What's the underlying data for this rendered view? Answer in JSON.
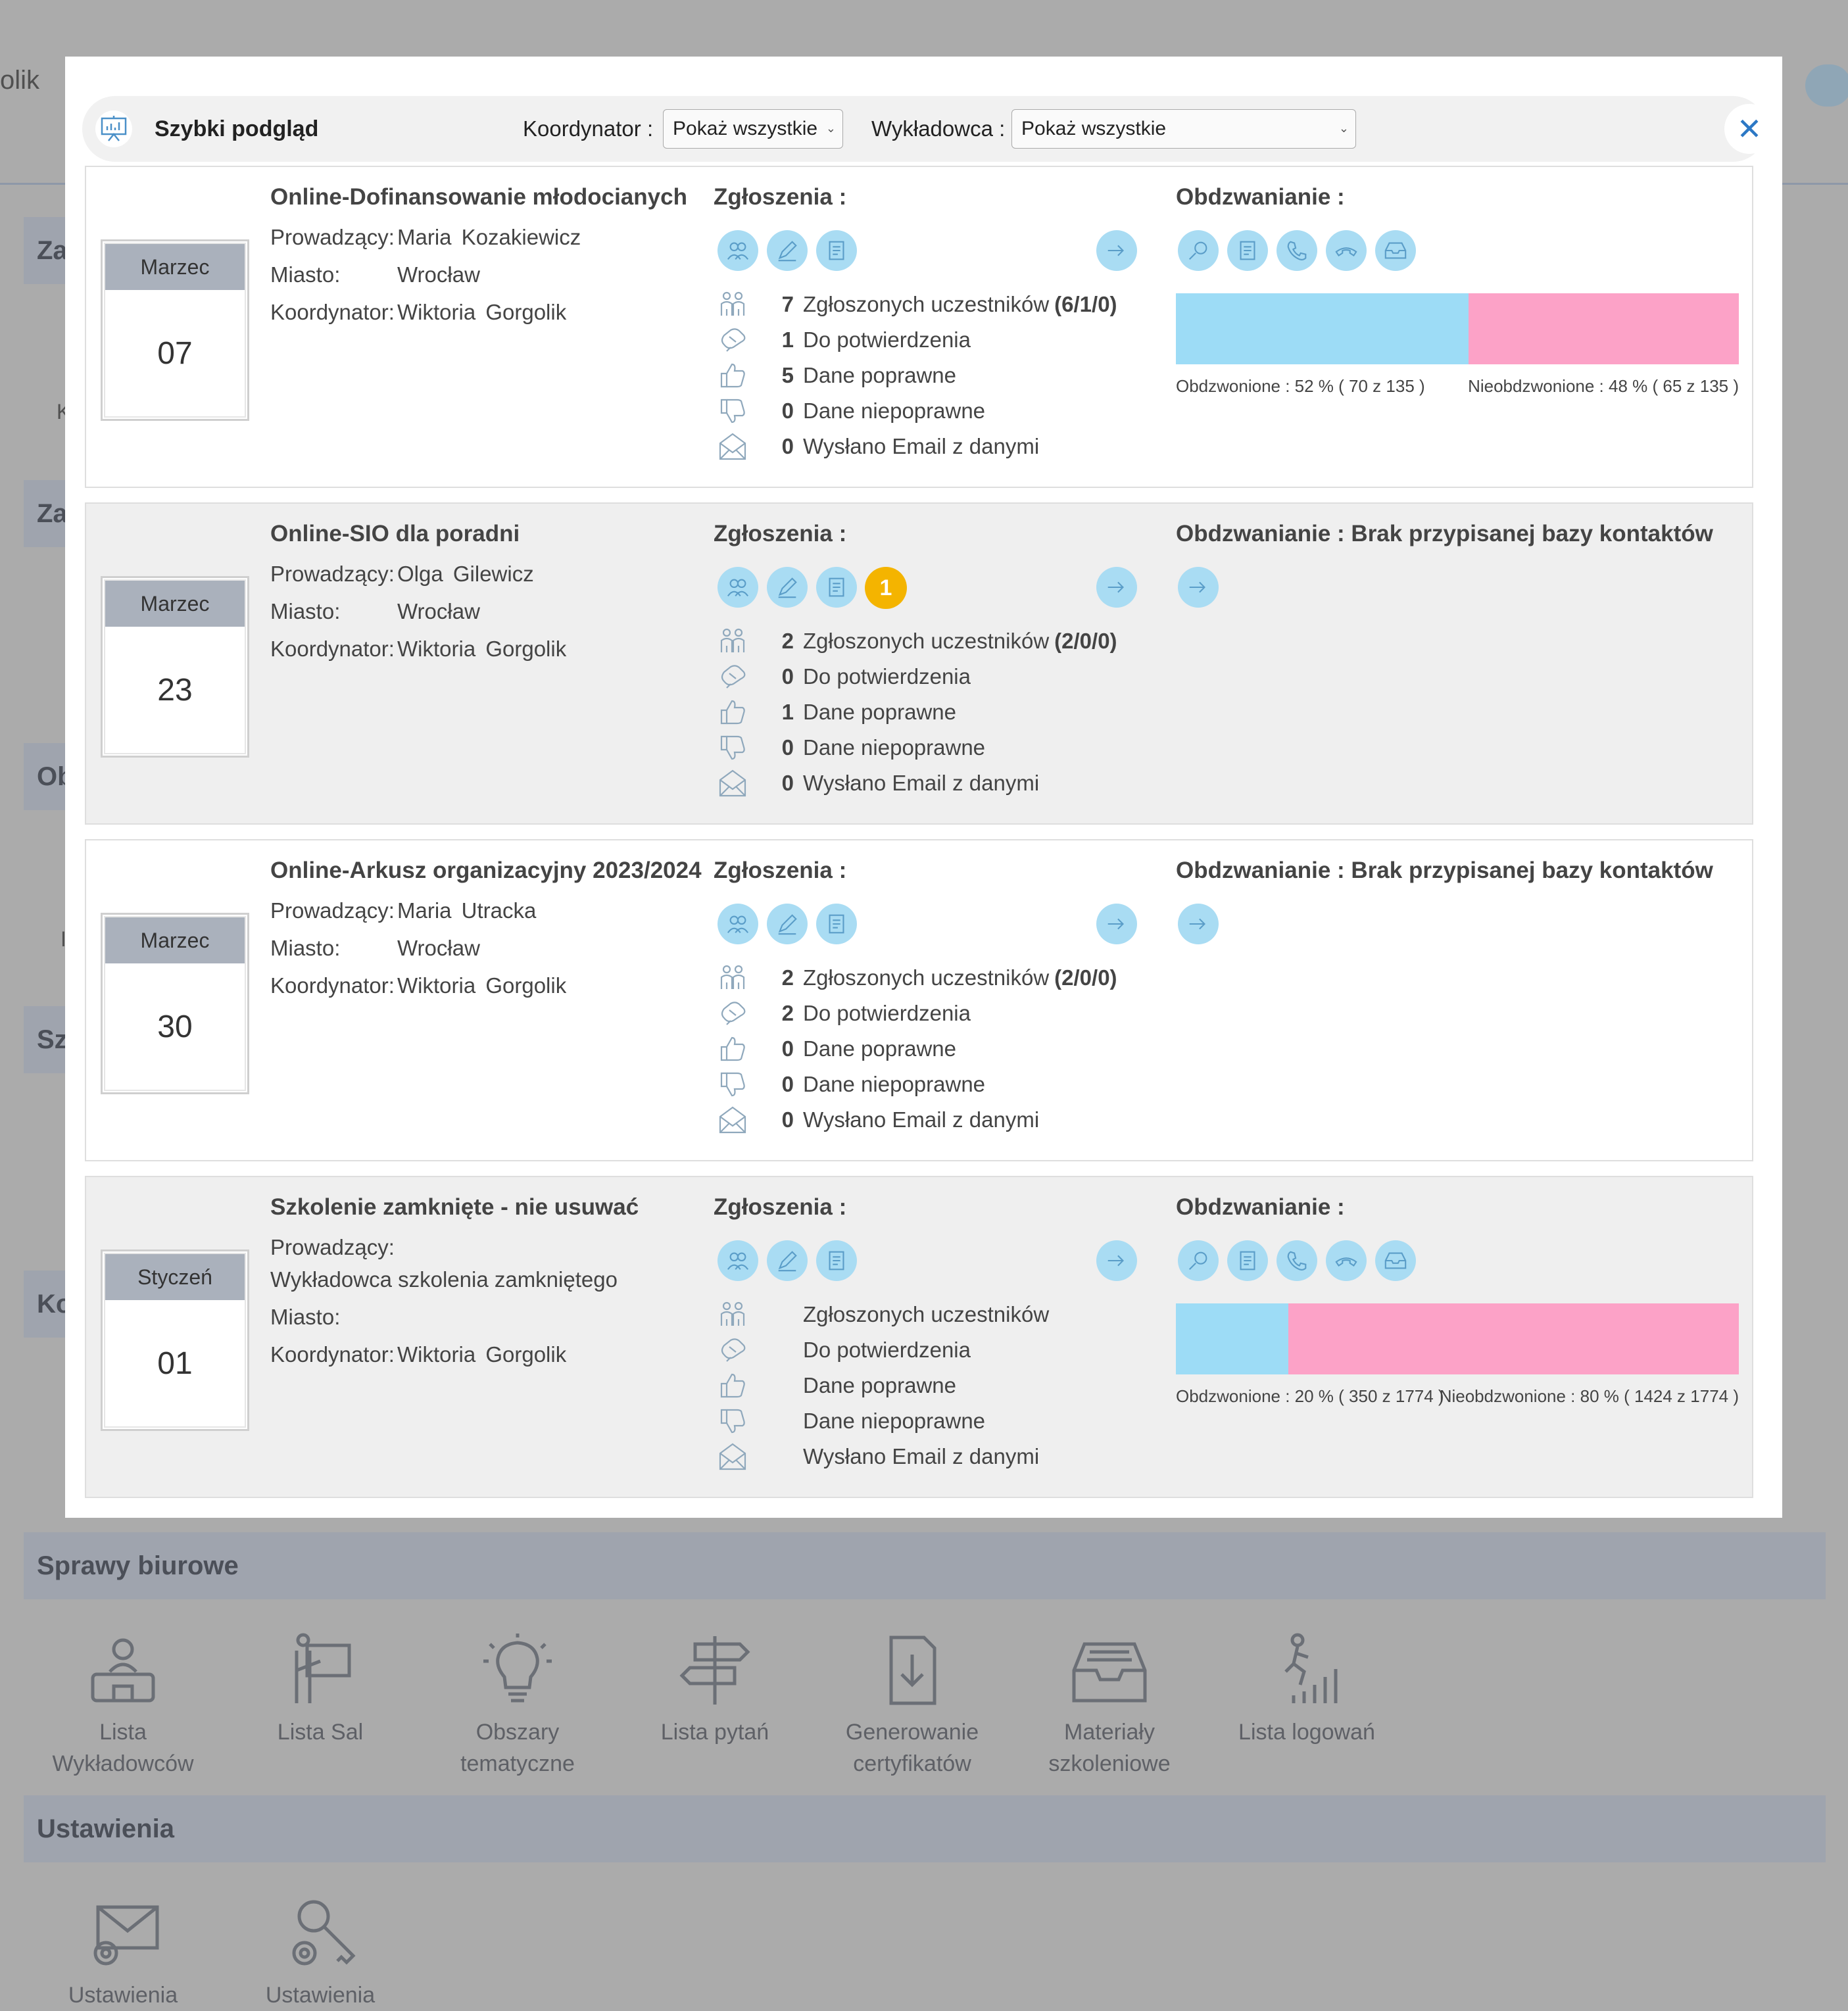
{
  "background": {
    "top_left_fragment": "olik",
    "side_fragments": [
      "Za",
      "K",
      "Za",
      "Ob",
      "I",
      "Sz",
      "Ko"
    ],
    "sections": [
      {
        "label": "Sprawy biurowe"
      },
      {
        "label": "Ustawienia"
      }
    ],
    "office_tiles": [
      {
        "label": "Lista\nWykładowców",
        "icon": "lecturer-icon"
      },
      {
        "label": "Lista Sal",
        "icon": "room-sign-icon"
      },
      {
        "label": "Obszary\ntematyczne",
        "icon": "lightbulb-icon"
      },
      {
        "label": "Lista pytań",
        "icon": "signpost-icon"
      },
      {
        "label": "Generowanie\ncertyfikatów",
        "icon": "download-document-icon"
      },
      {
        "label": "Materiały\nszkoleniowe",
        "icon": "inbox-tray-icon"
      },
      {
        "label": "Lista logowań",
        "icon": "login-stats-icon"
      }
    ],
    "settings_tiles": [
      {
        "label": "Ustawienia",
        "icon": "email-settings-icon"
      },
      {
        "label": "Ustawienia",
        "icon": "key-settings-icon"
      }
    ]
  },
  "modal": {
    "title": "Szybki podgląd",
    "coordinator_label": "Koordynator :",
    "coordinator_value": "Pokaż wszystkie",
    "lecturer_label": "Wykładowca :",
    "lecturer_value": "Pokaż wszystkie",
    "close_icon": "close-icon"
  },
  "labels": {
    "lecturer": "Prowadzący:",
    "city": "Miasto:",
    "coordinator": "Koordynator:",
    "applications": "Zgłoszenia :",
    "registered": "Zgłoszonych uczestników",
    "to_confirm": "Do potwierdzenia",
    "data_ok": "Dane poprawne",
    "data_bad": "Dane niepoprawne",
    "email_sent": "Wysłano Email z danymi"
  },
  "colors": {
    "called": "#9ddcf6",
    "not_called": "#fca2c7",
    "icon_button": "#a9dcf3",
    "badge": "#f4b400"
  },
  "cards": [
    {
      "month": "Marzec",
      "day": "07",
      "title": "Online-Dofinansowanie młodocianych",
      "lecturer": "Maria  Kozakiewicz",
      "city": "Wrocław",
      "coordinator": "Wiktoria Gorgolik",
      "stats": {
        "registered": "7",
        "registered_detail": "(6/1/0)",
        "to_confirm": "1",
        "data_ok": "5",
        "data_bad": "0",
        "email_sent": "0"
      },
      "calls_title": "Obdzwanianie :",
      "called_fraction": 0.52,
      "called_label": "Obdzwonione : 52 % ( 70 z 135 )",
      "not_called_label": "Nieobdzwonione : 48 % ( 65 z 135 )"
    },
    {
      "month": "Marzec",
      "day": "23",
      "title": "Online-SIO dla poradni",
      "lecturer": "Olga  Gilewicz",
      "city": "Wrocław",
      "coordinator": "Wiktoria Gorgolik",
      "badge": "1",
      "stats": {
        "registered": "2",
        "registered_detail": "(2/0/0)",
        "to_confirm": "0",
        "data_ok": "1",
        "data_bad": "0",
        "email_sent": "0"
      },
      "calls_title": "Obdzwanianie : Brak przypisanej bazy kontaktów"
    },
    {
      "month": "Marzec",
      "day": "30",
      "title": "Online-Arkusz organizacyjny 2023/2024",
      "lecturer": "Maria  Utracka",
      "city": "Wrocław",
      "coordinator": "Wiktoria Gorgolik",
      "stats": {
        "registered": "2",
        "registered_detail": "(2/0/0)",
        "to_confirm": "2",
        "data_ok": "0",
        "data_bad": "0",
        "email_sent": "0"
      },
      "calls_title": "Obdzwanianie : Brak przypisanej bazy kontaktów"
    },
    {
      "month": "Styczeń",
      "day": "01",
      "title": "Szkolenie zamknięte - nie usuwać",
      "lecturer": "Wykładowca szkolenia zamkniętego",
      "city": "",
      "coordinator": "Wiktoria Gorgolik",
      "stats": {
        "registered": "",
        "registered_detail": "",
        "to_confirm": "",
        "data_ok": "",
        "data_bad": "",
        "email_sent": ""
      },
      "calls_title": "Obdzwanianie :",
      "called_fraction": 0.2,
      "called_label": "Obdzwonione : 20 % ( 350 z 1774 )",
      "not_called_label": "Nieobdzwonione : 80 % ( 1424 z 1774 )"
    }
  ]
}
